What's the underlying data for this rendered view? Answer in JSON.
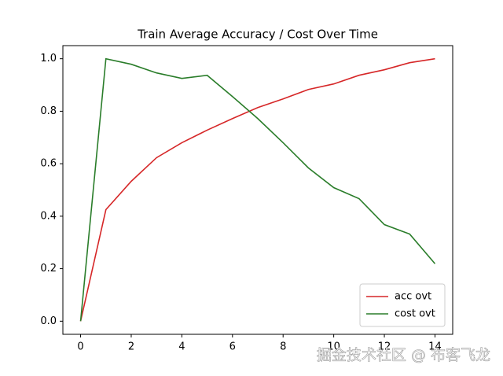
{
  "chart_data": {
    "type": "line",
    "title": "Train Average Accuracy / Cost Over Time",
    "x": [
      0,
      1,
      2,
      3,
      4,
      5,
      6,
      7,
      8,
      9,
      10,
      11,
      12,
      13,
      14
    ],
    "series": [
      {
        "name": "acc ovt",
        "color": "#d62728",
        "values": [
          0,
          0.425,
          0.533,
          0.623,
          0.68,
          0.728,
          0.772,
          0.814,
          0.847,
          0.883,
          0.904,
          0.937,
          0.958,
          0.985,
          1.0
        ]
      },
      {
        "name": "cost ovt",
        "color": "#2a7d2a",
        "values": [
          0,
          1.0,
          0.979,
          0.946,
          0.925,
          0.937,
          0.856,
          0.772,
          0.68,
          0.584,
          0.509,
          0.467,
          0.368,
          0.332,
          0.219
        ]
      }
    ],
    "xlim": [
      -0.7,
      14.7
    ],
    "xticks": [
      0,
      2,
      4,
      6,
      8,
      10,
      12,
      14
    ],
    "ylim": [
      -0.05,
      1.05
    ],
    "yticks": [
      {
        "value": 0,
        "label": "0.0"
      },
      {
        "value": 0.2,
        "label": "0.2"
      },
      {
        "value": 0.4,
        "label": "0.4"
      },
      {
        "value": 0.6,
        "label": "0.6"
      },
      {
        "value": 0.8,
        "label": "0.8"
      },
      {
        "value": 1.0,
        "label": "1.0"
      }
    ],
    "legend": "lower right",
    "watermark": "掘金技术社区 @ 布客飞龙"
  }
}
